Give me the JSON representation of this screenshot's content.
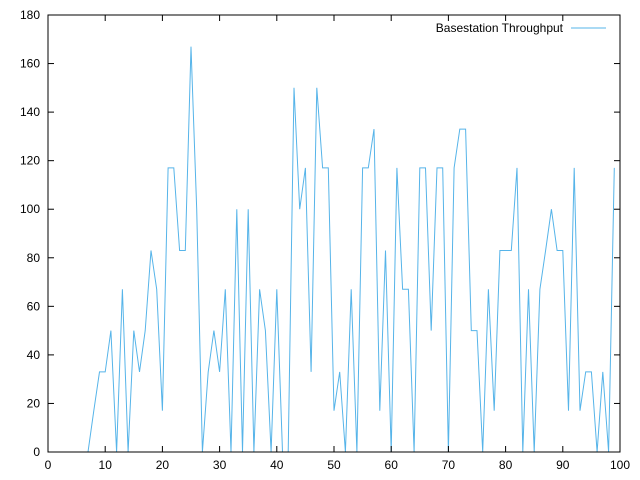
{
  "chart_data": {
    "type": "line",
    "title": "",
    "xlabel": "",
    "ylabel": "",
    "xlim": [
      0,
      100
    ],
    "ylim": [
      0,
      180
    ],
    "x_ticks": [
      "0",
      "10",
      "20",
      "30",
      "40",
      "50",
      "60",
      "70",
      "80",
      "90",
      "100"
    ],
    "y_ticks": [
      "0",
      "20",
      "40",
      "60",
      "80",
      "100",
      "120",
      "140",
      "160",
      "180"
    ],
    "grid": false,
    "legend_position": "top-right",
    "series": [
      {
        "name": "Basestation Throughput",
        "color": "#56b4e9",
        "x": [
          0,
          1,
          2,
          3,
          4,
          5,
          6,
          7,
          8,
          9,
          10,
          11,
          12,
          13,
          14,
          15,
          16,
          17,
          18,
          19,
          20,
          21,
          22,
          23,
          24,
          25,
          26,
          27,
          28,
          29,
          30,
          31,
          32,
          33,
          34,
          35,
          36,
          37,
          38,
          39,
          40,
          41,
          42,
          43,
          44,
          45,
          46,
          47,
          48,
          49,
          50,
          51,
          52,
          53,
          54,
          55,
          56,
          57,
          58,
          59,
          60,
          61,
          62,
          63,
          64,
          65,
          66,
          67,
          68,
          69,
          70,
          71,
          72,
          73,
          74,
          75,
          76,
          77,
          78,
          79,
          80,
          81,
          82,
          83,
          84,
          85,
          86,
          87,
          88,
          89,
          90,
          91,
          92,
          93,
          94,
          95,
          96,
          97,
          98,
          99
        ],
        "y": [
          0,
          0,
          0,
          0,
          0,
          0,
          0,
          0,
          17,
          33,
          33,
          50,
          0,
          67,
          0,
          50,
          33,
          50,
          83,
          67,
          17,
          117,
          117,
          83,
          83,
          167,
          100,
          0,
          33,
          50,
          33,
          67,
          0,
          100,
          0,
          100,
          0,
          67,
          50,
          0,
          67,
          0,
          0,
          150,
          100,
          117,
          33,
          150,
          117,
          117,
          17,
          33,
          0,
          67,
          0,
          117,
          117,
          133,
          17,
          83,
          0,
          117,
          67,
          67,
          0,
          117,
          117,
          50,
          117,
          117,
          0,
          117,
          133,
          133,
          50,
          50,
          0,
          67,
          17,
          83,
          83,
          83,
          117,
          0,
          67,
          0,
          67,
          83,
          100,
          83,
          83,
          17,
          117,
          17,
          33,
          33,
          0,
          33,
          0,
          117
        ]
      }
    ]
  }
}
